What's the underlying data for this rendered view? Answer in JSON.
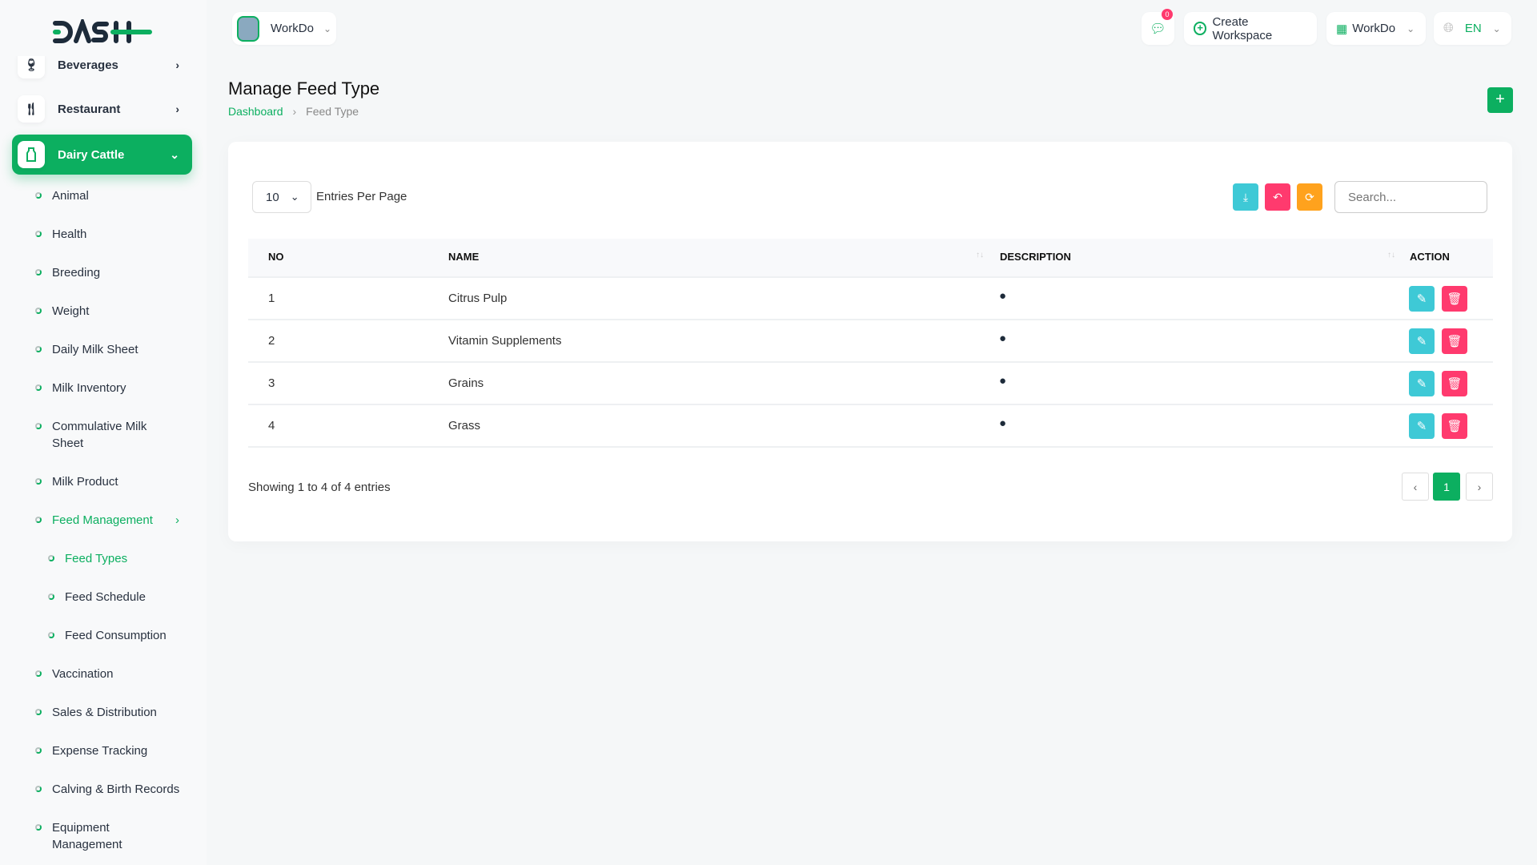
{
  "brand": {
    "logo_text": "DASH"
  },
  "header": {
    "workspace": "WorkDo",
    "notifications_count": "0",
    "create_workspace": "Create Workspace",
    "workdo_menu": "WorkDo",
    "language": "EN"
  },
  "sidebar": {
    "top_items": [
      {
        "label": "Beverages",
        "icon": "wine-glass-icon"
      },
      {
        "label": "Restaurant",
        "icon": "fork-knife-icon"
      },
      {
        "label": "Dairy Cattle",
        "icon": "milk-bottle-icon",
        "active": true
      }
    ],
    "sub_items": [
      "Animal",
      "Health",
      "Breeding",
      "Weight",
      "Daily Milk Sheet",
      "Milk Inventory",
      "Commulative Milk Sheet",
      "Milk Product",
      "Feed Management",
      "Vaccination",
      "Sales & Distribution",
      "Expense Tracking",
      "Calving & Birth Records",
      "Equipment Management"
    ],
    "feed_sub_items": [
      "Feed Types",
      "Feed Schedule",
      "Feed Consumption"
    ]
  },
  "page": {
    "title": "Manage Feed Type",
    "breadcrumb": [
      "Dashboard",
      "Feed Type"
    ]
  },
  "table": {
    "entries_value": "10",
    "entries_label": "Entries Per Page",
    "search_placeholder": "Search...",
    "columns": [
      "NO",
      "NAME",
      "DESCRIPTION",
      "ACTION"
    ],
    "rows": [
      {
        "no": "1",
        "name": "Citrus Pulp"
      },
      {
        "no": "2",
        "name": "Vitamin Supplements"
      },
      {
        "no": "3",
        "name": "Grains"
      },
      {
        "no": "4",
        "name": "Grass"
      }
    ],
    "footer": "Showing 1 to 4 of 4 entries",
    "current_page": "1"
  },
  "colors": {
    "primary": "#0caf60",
    "info": "#3ec9d6",
    "danger": "#ff3a6e",
    "warning": "#ffa21d"
  }
}
